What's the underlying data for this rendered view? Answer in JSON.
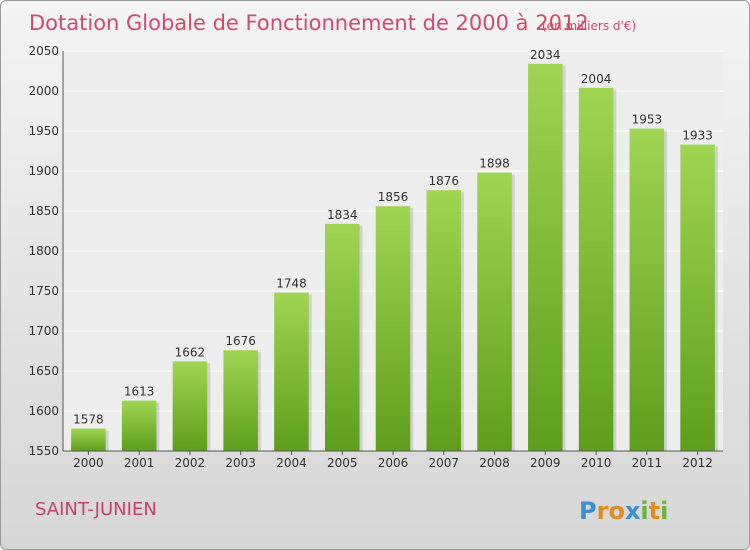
{
  "chart_data": {
    "type": "bar",
    "title": "Dotation Globale de Fonctionnement de 2000 à 2012",
    "subtitle": "(en milliers d'€)",
    "categories": [
      "2000",
      "2001",
      "2002",
      "2003",
      "2004",
      "2005",
      "2006",
      "2007",
      "2008",
      "2009",
      "2010",
      "2011",
      "2012"
    ],
    "values": [
      1578,
      1613,
      1662,
      1676,
      1748,
      1834,
      1856,
      1876,
      1898,
      2034,
      2004,
      1953,
      1933
    ],
    "ylim": [
      1550,
      2050
    ],
    "yticks": [
      1550,
      1600,
      1650,
      1700,
      1750,
      1800,
      1850,
      1900,
      1950,
      2000,
      2050
    ],
    "grid": true,
    "bar_color": "#7fbf3f"
  },
  "location": "SAINT-JUNIEN",
  "brand": "Proxiti"
}
